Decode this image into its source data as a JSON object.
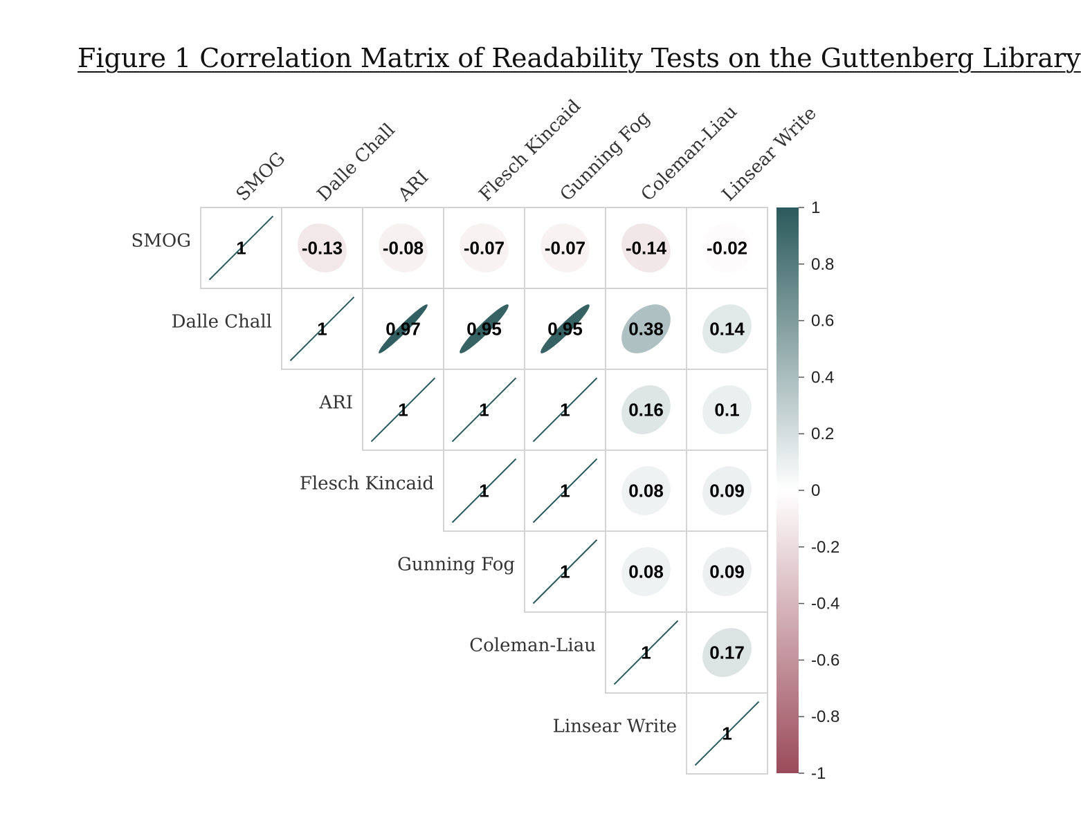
{
  "title": "Figure 1 Correlation Matrix of Readability Tests on the Guttenberg Library",
  "chart_data": {
    "type": "heatmap",
    "style": "correlation-ellipses-upper-triangle",
    "variables": [
      "SMOG",
      "Dalle Chall",
      "ARI",
      "Flesch Kincaid",
      "Gunning Fog",
      "Coleman-Liau",
      "Linsear Write"
    ],
    "column_labels": [
      "SMOG",
      "Dalle Chall",
      "ARI",
      "Flesch Kincaid",
      "Gunning Fog",
      "Coleman-Liau",
      "Linsear Write"
    ],
    "row_labels": [
      "SMOG",
      "Dalle Chall",
      "ARI",
      "Flesch Kincaid",
      "Gunning Fog",
      "Coleman-Liau",
      "Linsear Write"
    ],
    "matrix": [
      [
        1,
        -0.13,
        -0.08,
        -0.07,
        -0.07,
        -0.14,
        -0.02
      ],
      [
        null,
        1,
        0.97,
        0.95,
        0.95,
        0.38,
        0.14
      ],
      [
        null,
        null,
        1,
        1,
        1,
        0.16,
        0.1
      ],
      [
        null,
        null,
        null,
        1,
        1,
        0.08,
        0.09
      ],
      [
        null,
        null,
        null,
        null,
        1,
        0.08,
        0.09
      ],
      [
        null,
        null,
        null,
        null,
        null,
        1,
        0.17
      ],
      [
        null,
        null,
        null,
        null,
        null,
        null,
        1
      ]
    ],
    "colorbar": {
      "range": [
        -1,
        1
      ],
      "ticks": [
        "1",
        "0.8",
        "0.6",
        "0.4",
        "0.2",
        "0",
        "-0.2",
        "-0.4",
        "-0.6",
        "-0.8",
        "-1"
      ],
      "high_color": "#2b5a5c",
      "mid_color": "#ffffff",
      "low_color": "#9a4b5a"
    }
  }
}
